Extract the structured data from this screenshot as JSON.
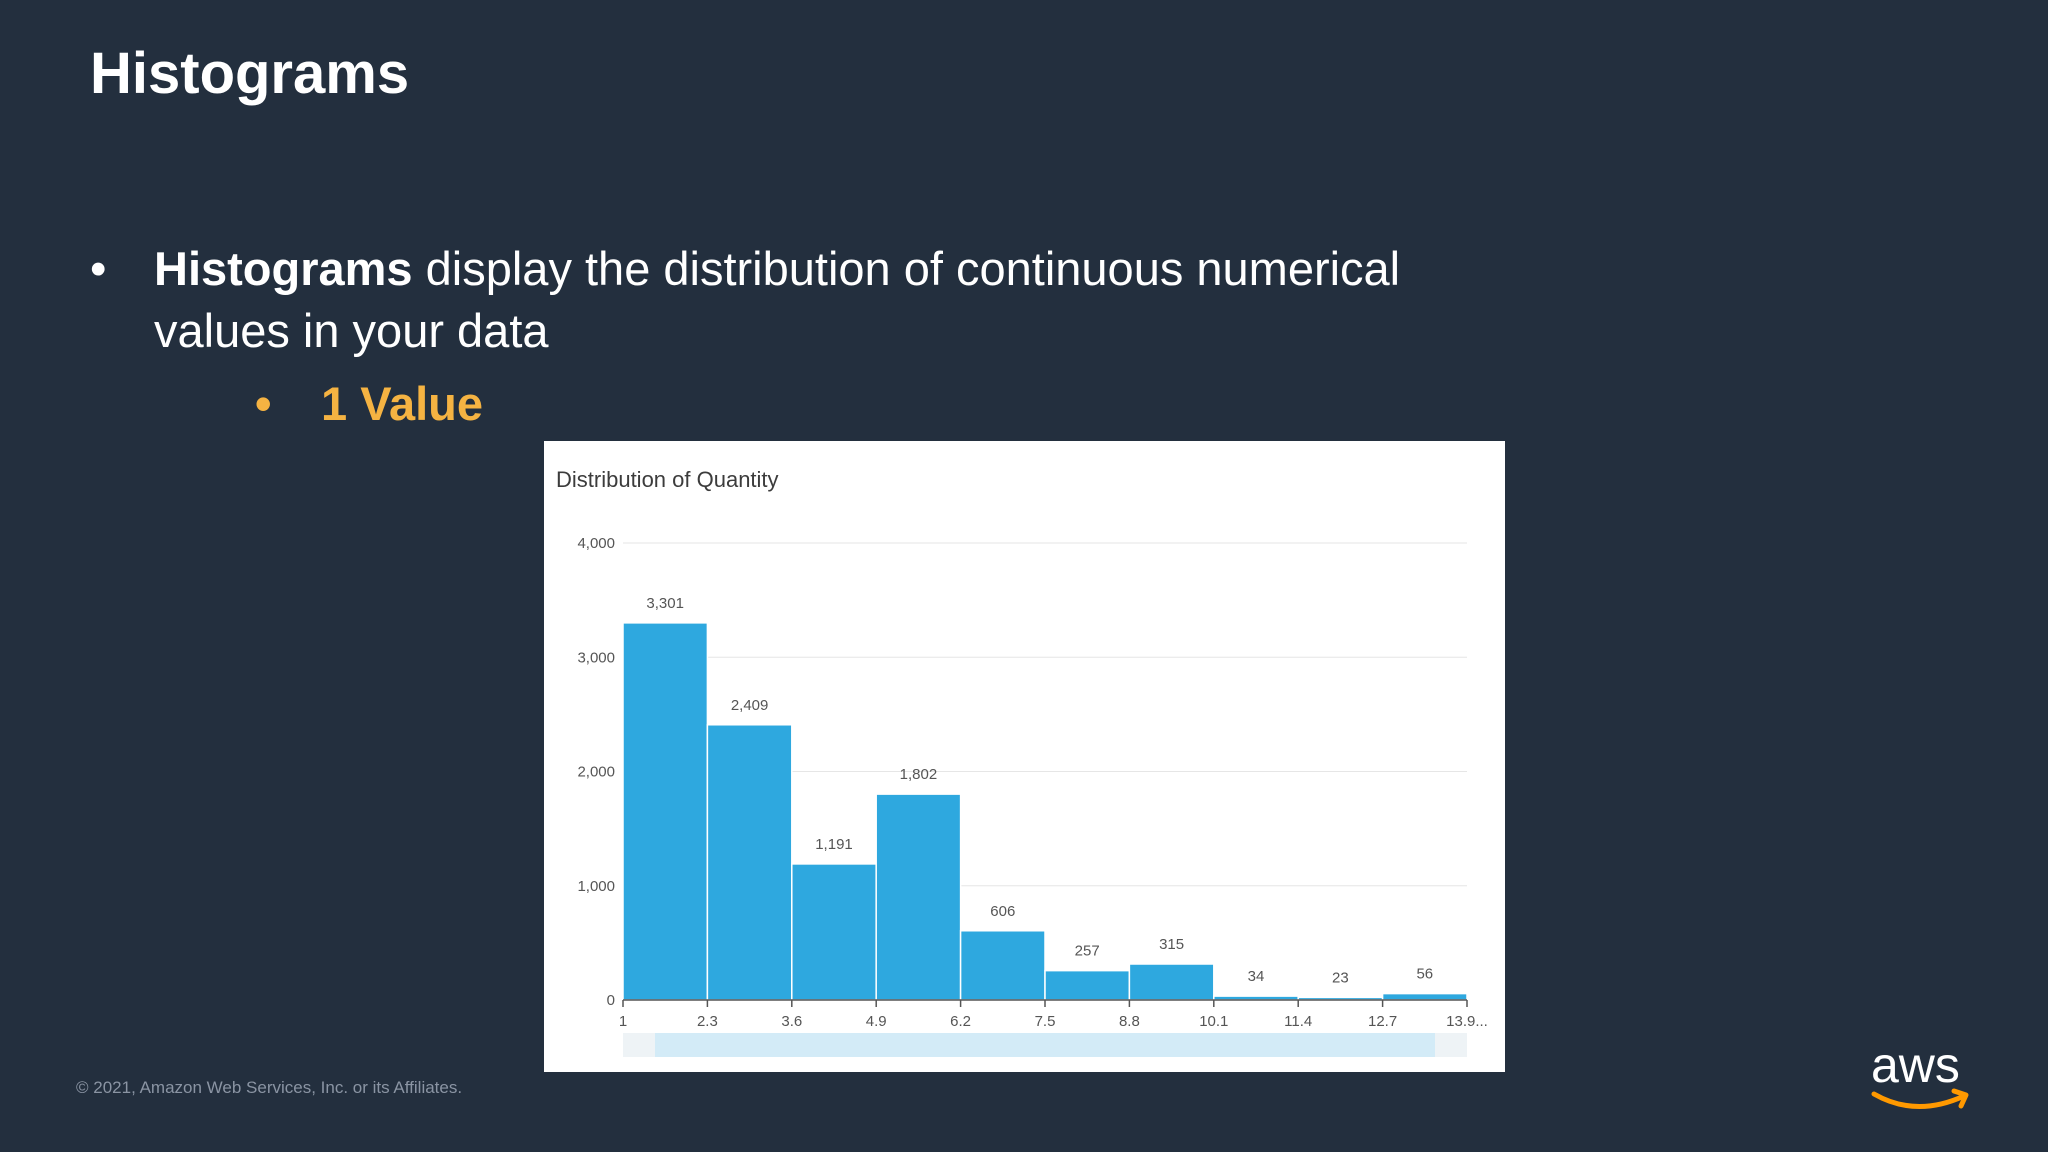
{
  "slide": {
    "title": "Histograms",
    "bullet_dot": "•",
    "bullet_bold": "Histograms",
    "bullet_rest": " display the distribution of continuous numerical values in your data",
    "sub_bullet_dot": "•",
    "sub_bullet": "1 Value",
    "footer": "© 2021, Amazon Web Services, Inc. or its Affiliates.",
    "logo_text": "aws"
  },
  "colors": {
    "background": "#232f3e",
    "accent": "#f5b342",
    "bar": "#2ea8df",
    "logo_swoosh": "#ff9900"
  },
  "chart_data": {
    "type": "bar",
    "title": "Distribution of Quantity",
    "xlabel": "",
    "ylabel": "",
    "x_ticks": [
      "1",
      "2.3",
      "3.6",
      "4.9",
      "6.2",
      "7.5",
      "8.8",
      "10.1",
      "11.4",
      "12.7",
      "13.9..."
    ],
    "values": [
      3301,
      2409,
      1191,
      1802,
      606,
      257,
      315,
      34,
      23,
      56
    ],
    "value_labels": [
      "3,301",
      "2,409",
      "1,191",
      "1,802",
      "606",
      "257",
      "315",
      "34",
      "23",
      "56"
    ],
    "y_ticks": [
      0,
      1000,
      2000,
      3000,
      4000
    ],
    "y_tick_labels": [
      "0",
      "1,000",
      "2,000",
      "3,000",
      "4,000"
    ],
    "ylim": [
      0,
      4000
    ],
    "grid": true,
    "legend": "none"
  }
}
